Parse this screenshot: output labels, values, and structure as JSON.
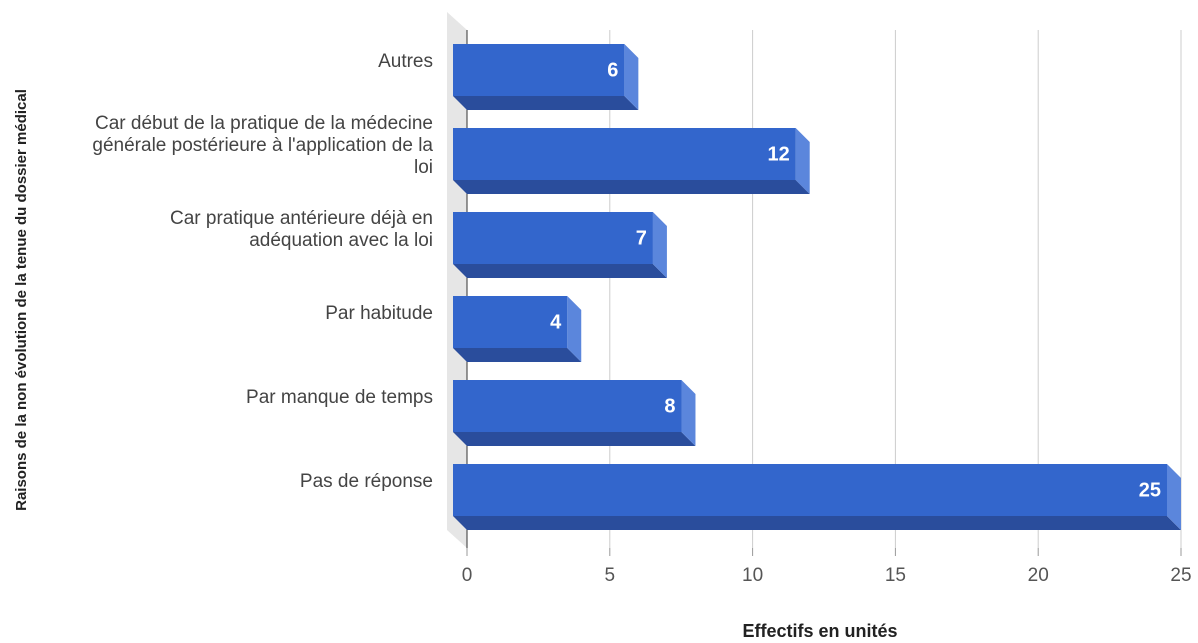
{
  "chart_data": {
    "type": "bar",
    "orientation": "horizontal",
    "categories": [
      "Autres",
      "Car début de la pratique de la médecine générale postérieure à l'application de la loi",
      "Car pratique antérieure déjà en adéquation avec la loi",
      "Par habitude",
      "Par manque de temps",
      "Pas de réponse"
    ],
    "values": [
      6,
      12,
      7,
      4,
      8,
      25
    ],
    "color": "#3366cc",
    "xlim": [
      0,
      25
    ],
    "xticks": [
      0,
      5,
      10,
      15,
      20,
      25
    ],
    "grid": true,
    "xlabel": "Effectifs en unités",
    "ylabel": "Raisons de la non évolution de la tenue du dossier médical"
  }
}
